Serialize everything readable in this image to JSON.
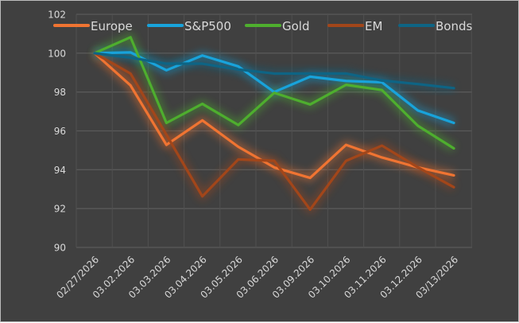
{
  "chart_data": {
    "type": "line",
    "title": "",
    "xlabel": "",
    "ylabel": "",
    "ylim": [
      90,
      102
    ],
    "yticks": [
      90,
      92,
      94,
      96,
      98,
      100,
      102
    ],
    "grid": true,
    "legend_position": "top",
    "categories": [
      "02/27/2026",
      "03.02.2026",
      "03.03.2026",
      "03.04.2026",
      "03.05.2026",
      "03.06.2026",
      "03.09.2026",
      "03.10.2026",
      "03.11.2026",
      "03.12.2026",
      "03/13/2026"
    ],
    "series": [
      {
        "name": "Europe",
        "color": "#f07432",
        "values": [
          100,
          98.34,
          95.28,
          96.54,
          95.18,
          94.12,
          93.58,
          95.28,
          94.63,
          94.12,
          93.71
        ]
      },
      {
        "name": "S&P500",
        "color": "#18a3db",
        "values": [
          100,
          100.04,
          99.12,
          99.88,
          99.32,
          98.0,
          98.79,
          98.57,
          98.5,
          97.05,
          96.41
        ]
      },
      {
        "name": "Gold",
        "color": "#4eae2e",
        "values": [
          100,
          100.82,
          96.41,
          97.39,
          96.3,
          97.96,
          97.36,
          98.37,
          98.1,
          96.26,
          95.1
        ]
      },
      {
        "name": "EM",
        "color": "#a2461a",
        "values": [
          100,
          98.95,
          95.8,
          92.63,
          94.53,
          94.46,
          91.95,
          94.46,
          95.24,
          94.12,
          93.1
        ]
      },
      {
        "name": "Bonds",
        "color": "#0e6484",
        "values": [
          100,
          99.77,
          99.46,
          99.46,
          99.16,
          98.95,
          98.95,
          98.95,
          98.59,
          98.41,
          98.2
        ]
      }
    ]
  }
}
